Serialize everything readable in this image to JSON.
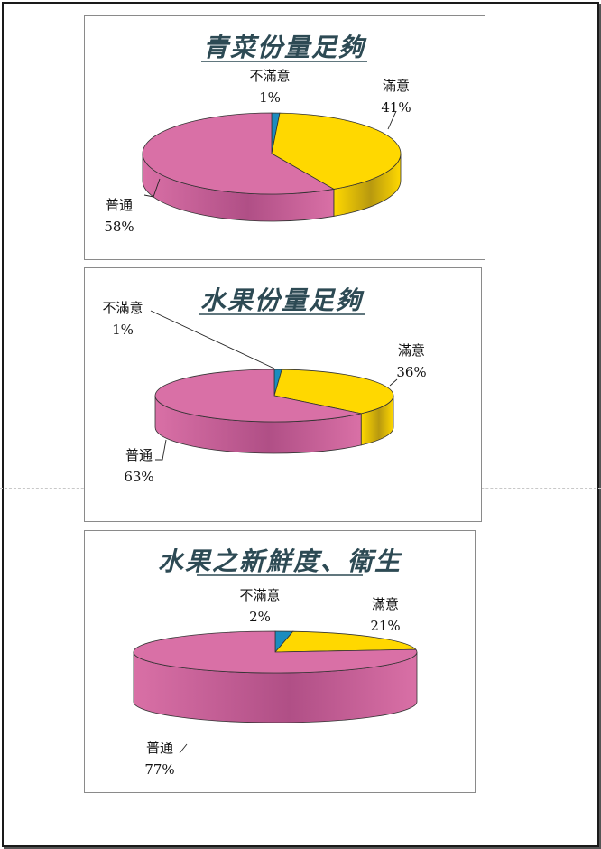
{
  "colors": {
    "satisfied": "#ffd800",
    "satisfied_side": "#b8990f",
    "neutral": "#d970a6",
    "neutral_side": "#b04f86",
    "dissatisfied": "#1b8cbf",
    "dissatisfied_side": "#156f99",
    "title": "#2d4a54"
  },
  "chart_data": [
    {
      "type": "pie",
      "title": "青菜份量足夠",
      "slices": [
        {
          "label": "不滿意",
          "value": 1,
          "percent": "1%"
        },
        {
          "label": "滿意",
          "value": 41,
          "percent": "41%"
        },
        {
          "label": "普通",
          "value": 58,
          "percent": "58%"
        }
      ]
    },
    {
      "type": "pie",
      "title": "水果份量足夠",
      "slices": [
        {
          "label": "不滿意",
          "value": 1,
          "percent": "1%"
        },
        {
          "label": "滿意",
          "value": 36,
          "percent": "36%"
        },
        {
          "label": "普通",
          "value": 63,
          "percent": "63%"
        }
      ]
    },
    {
      "type": "pie",
      "title": "水果之新鮮度、衛生",
      "slices": [
        {
          "label": "不滿意",
          "value": 2,
          "percent": "2%"
        },
        {
          "label": "滿意",
          "value": 21,
          "percent": "21%"
        },
        {
          "label": "普通",
          "value": 77,
          "percent": "77%"
        }
      ]
    }
  ]
}
